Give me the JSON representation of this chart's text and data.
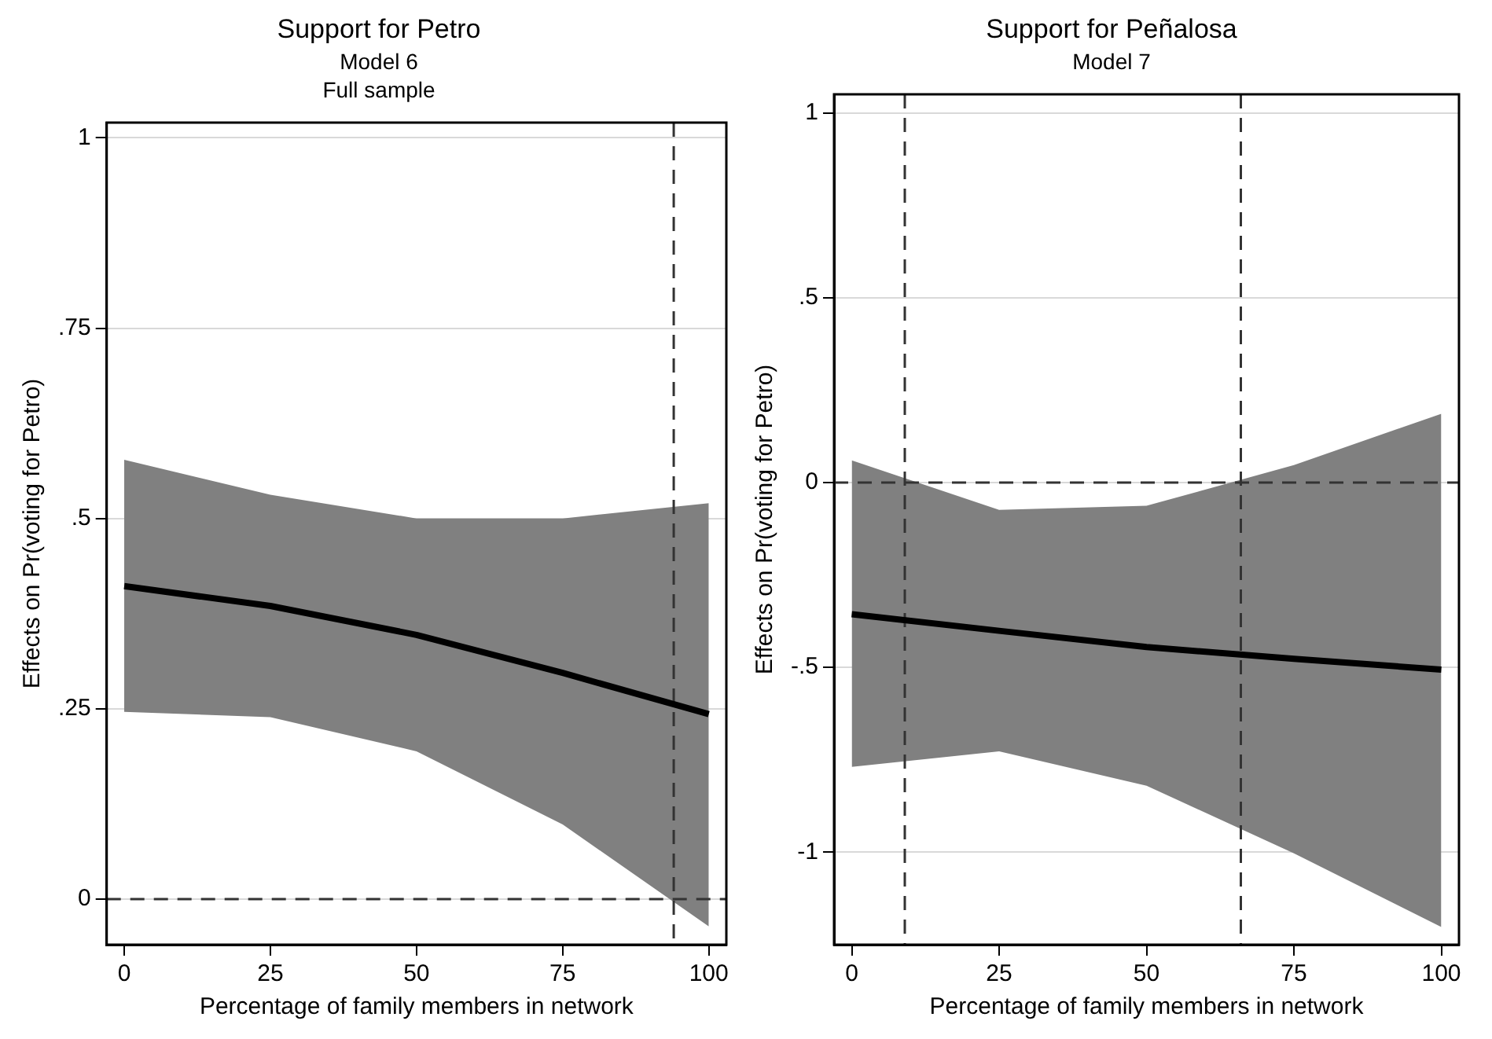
{
  "chart_data": [
    {
      "type": "line",
      "title": "Support for Petro",
      "subtitle": "Model 6\nFull sample",
      "xlabel": "Percentage of family members in network",
      "ylabel": "Effects on Pr(voting for Petro)",
      "x": [
        0,
        25,
        50,
        75,
        100
      ],
      "series": [
        {
          "color": "#000000",
          "values": [
            0.411,
            0.385,
            0.347,
            0.297,
            0.243
          ],
          "lower": [
            0.246,
            0.239,
            0.194,
            0.098,
            -0.036
          ],
          "upper": [
            0.577,
            0.531,
            0.5,
            0.5,
            0.52
          ]
        }
      ],
      "xlim": [
        -3,
        103
      ],
      "xticks": [
        0,
        25,
        50,
        75,
        100
      ],
      "ylim": [
        -0.06,
        1.02
      ],
      "yticks": [
        0,
        {
          "value": 0.25,
          "label": ".25"
        },
        {
          "value": 0.5,
          "label": ".5"
        },
        {
          "value": 0.75,
          "label": ".75"
        },
        1
      ],
      "ref_lines": [
        {
          "axis": "y",
          "value": 0,
          "line_style": "dashed"
        },
        {
          "axis": "x",
          "value": 94,
          "line_style": "dashed"
        }
      ],
      "grid": "y",
      "legend": false,
      "marker": "none",
      "line_style": "solid"
    },
    {
      "type": "line",
      "title": "Support for Peñalosa",
      "subtitle": "Model 7",
      "xlabel": "Percentage of family members in network",
      "ylabel": "Effects on Pr(voting for Petro)",
      "x": [
        0,
        25,
        50,
        75,
        100
      ],
      "series": [
        {
          "color": "#000000",
          "values": [
            -0.356,
            -0.401,
            -0.445,
            -0.477,
            -0.506
          ],
          "lower": [
            -0.769,
            -0.727,
            -0.82,
            -1.003,
            -1.202
          ],
          "upper": [
            0.06,
            -0.074,
            -0.063,
            0.047,
            0.186
          ]
        }
      ],
      "xlim": [
        -3,
        103
      ],
      "xticks": [
        0,
        25,
        50,
        75,
        100
      ],
      "ylim": [
        -1.25,
        1.05
      ],
      "yticks": [
        -1,
        {
          "value": -0.5,
          "label": "-.5"
        },
        0,
        {
          "value": 0.5,
          "label": ".5"
        },
        1
      ],
      "ref_lines": [
        {
          "axis": "y",
          "value": 0,
          "line_style": "dashed"
        },
        {
          "axis": "x",
          "value": 9,
          "line_style": "dashed"
        },
        {
          "axis": "x",
          "value": 66,
          "line_style": "dashed"
        }
      ],
      "grid": "y",
      "legend": false,
      "marker": "none",
      "line_style": "solid"
    }
  ]
}
